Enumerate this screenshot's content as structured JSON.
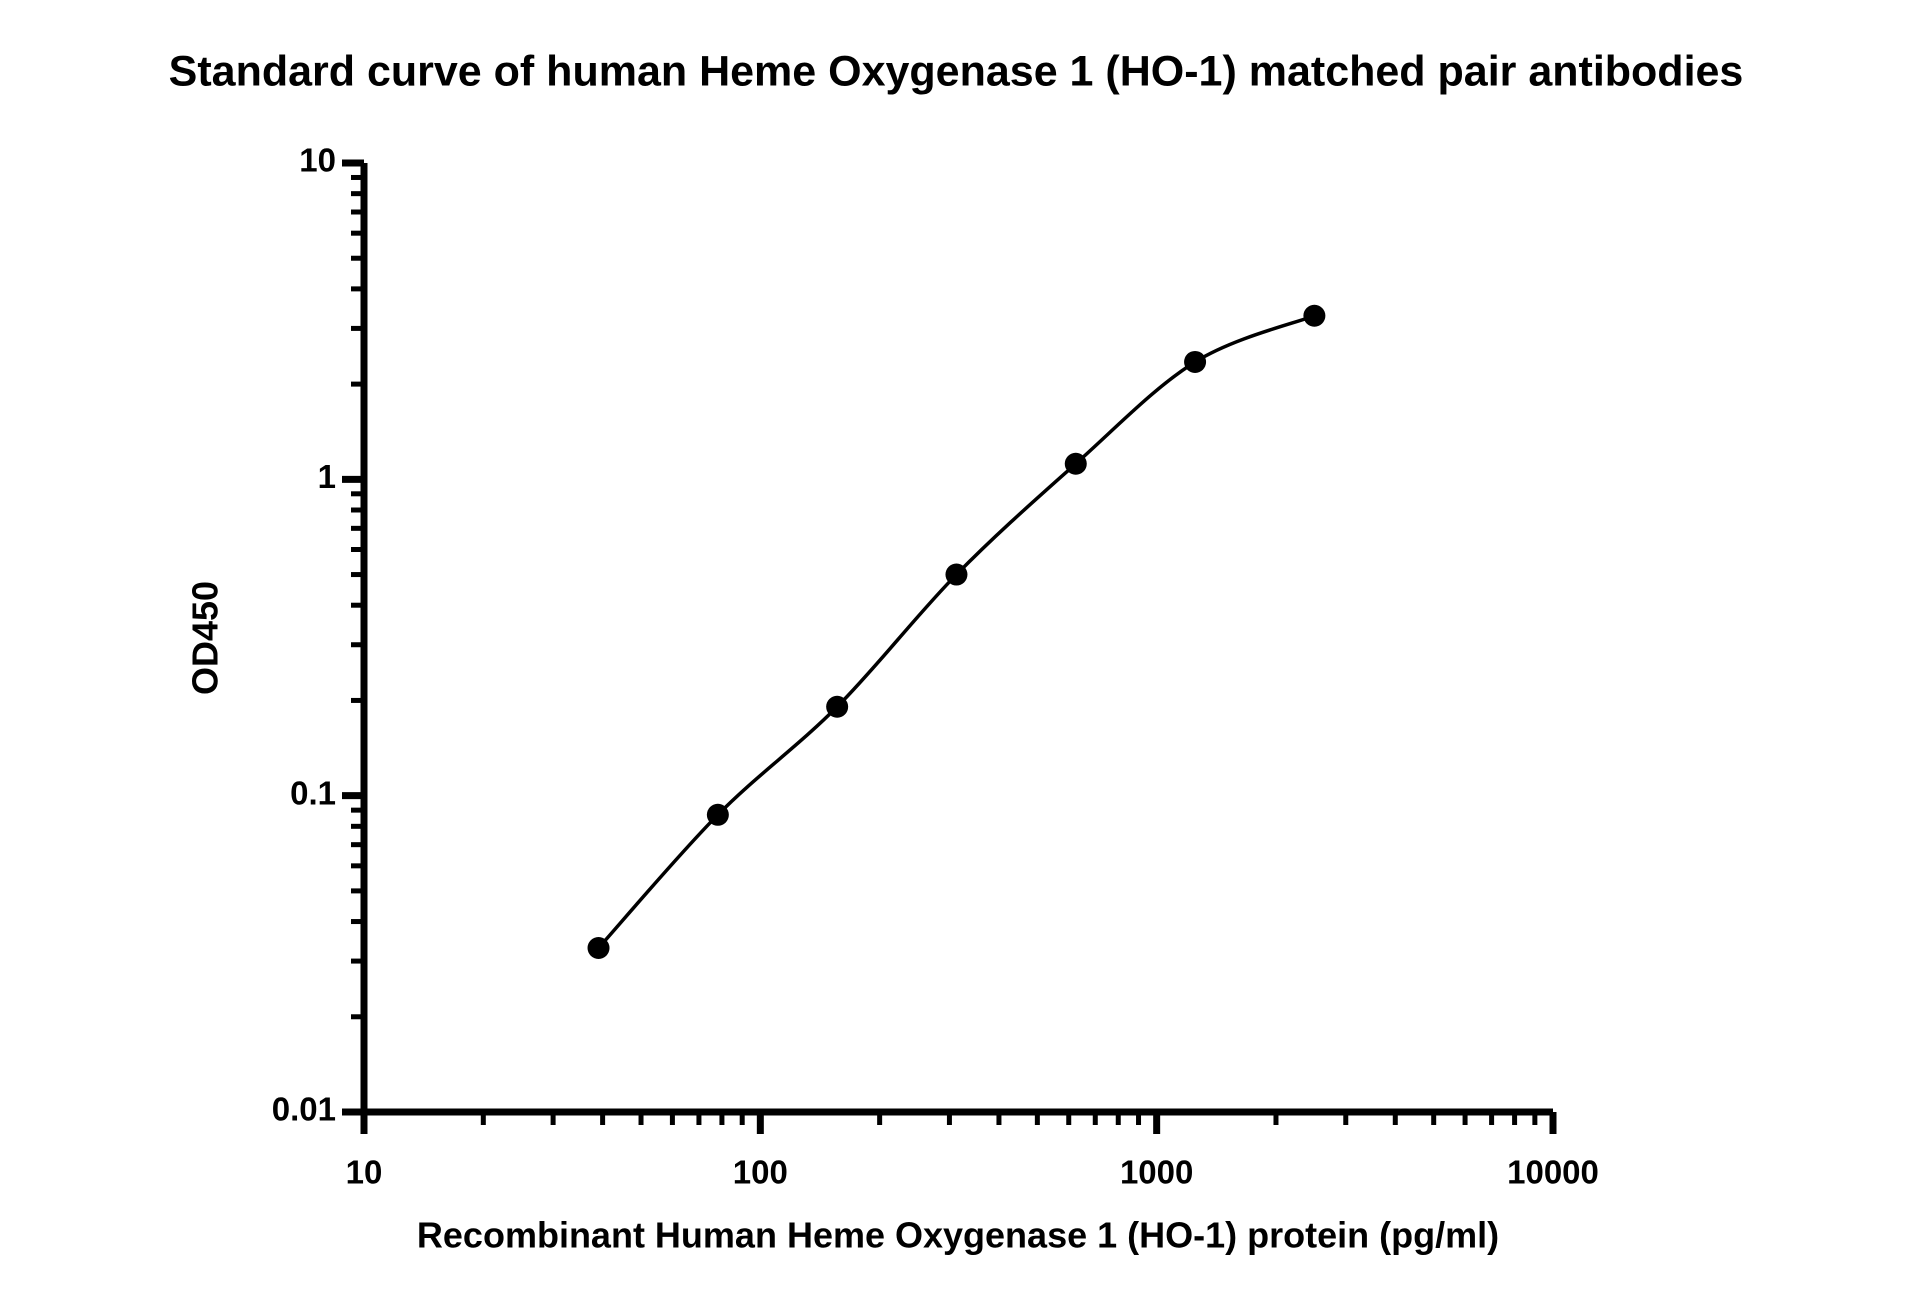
{
  "chart_data": {
    "type": "scatter",
    "title": "Standard curve of human Heme Oxygenase 1 (HO-1) matched pair antibodies",
    "xlabel": "Recombinant Human Heme Oxygenase 1 (HO-1) protein (pg/ml)",
    "ylabel": "OD450",
    "x_scale": "log",
    "y_scale": "log",
    "xlim": [
      10,
      10000
    ],
    "ylim": [
      0.01,
      10
    ],
    "xticks": [
      10,
      100,
      1000,
      10000
    ],
    "yticks": [
      0.01,
      0.1,
      1,
      10
    ],
    "xminorticks": [
      20,
      30,
      40,
      50,
      60,
      70,
      80,
      90,
      200,
      300,
      400,
      500,
      600,
      700,
      800,
      900,
      2000,
      3000,
      4000,
      5000,
      6000,
      7000,
      8000,
      9000
    ],
    "yminorticks": [
      0.02,
      0.03,
      0.04,
      0.05,
      0.06,
      0.07,
      0.08,
      0.09,
      0.2,
      0.3,
      0.4,
      0.5,
      0.6,
      0.7,
      0.8,
      0.9,
      2,
      3,
      4,
      5,
      6,
      7,
      8,
      9
    ],
    "grid": false,
    "fit_curve": true,
    "series": [
      {
        "color": "#000000",
        "x": [
          39.06,
          78.13,
          156.25,
          312.5,
          625,
          1250,
          2500
        ],
        "values": [
          0.033,
          0.087,
          0.191,
          0.5,
          1.12,
          2.35,
          3.29
        ]
      }
    ]
  }
}
